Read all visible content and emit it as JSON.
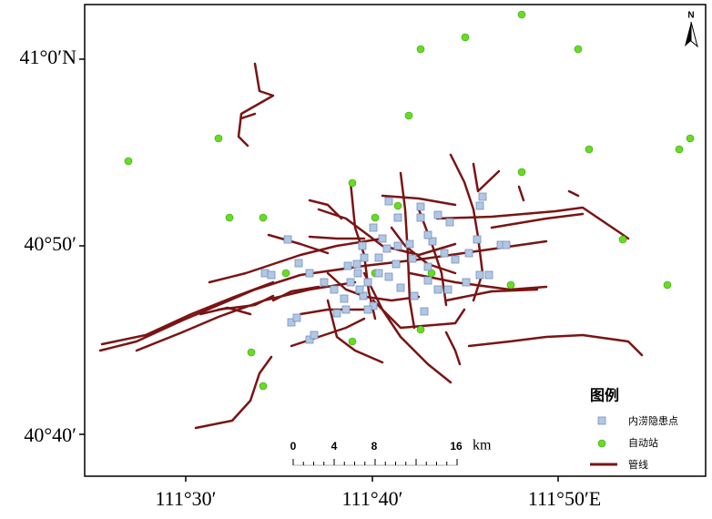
{
  "map": {
    "north": "N",
    "lat_labels": [
      "41°0′N",
      "40°50′",
      "40°40′"
    ],
    "lon_labels": [
      "111°30′",
      "111°40′",
      "111°50′E"
    ],
    "scale_bar": {
      "labels": [
        "0",
        "4",
        "8",
        "16"
      ],
      "unit": "km"
    },
    "legend": {
      "title": "图例",
      "items": [
        "内涝隐患点",
        "自动站",
        "管线"
      ]
    }
  }
}
